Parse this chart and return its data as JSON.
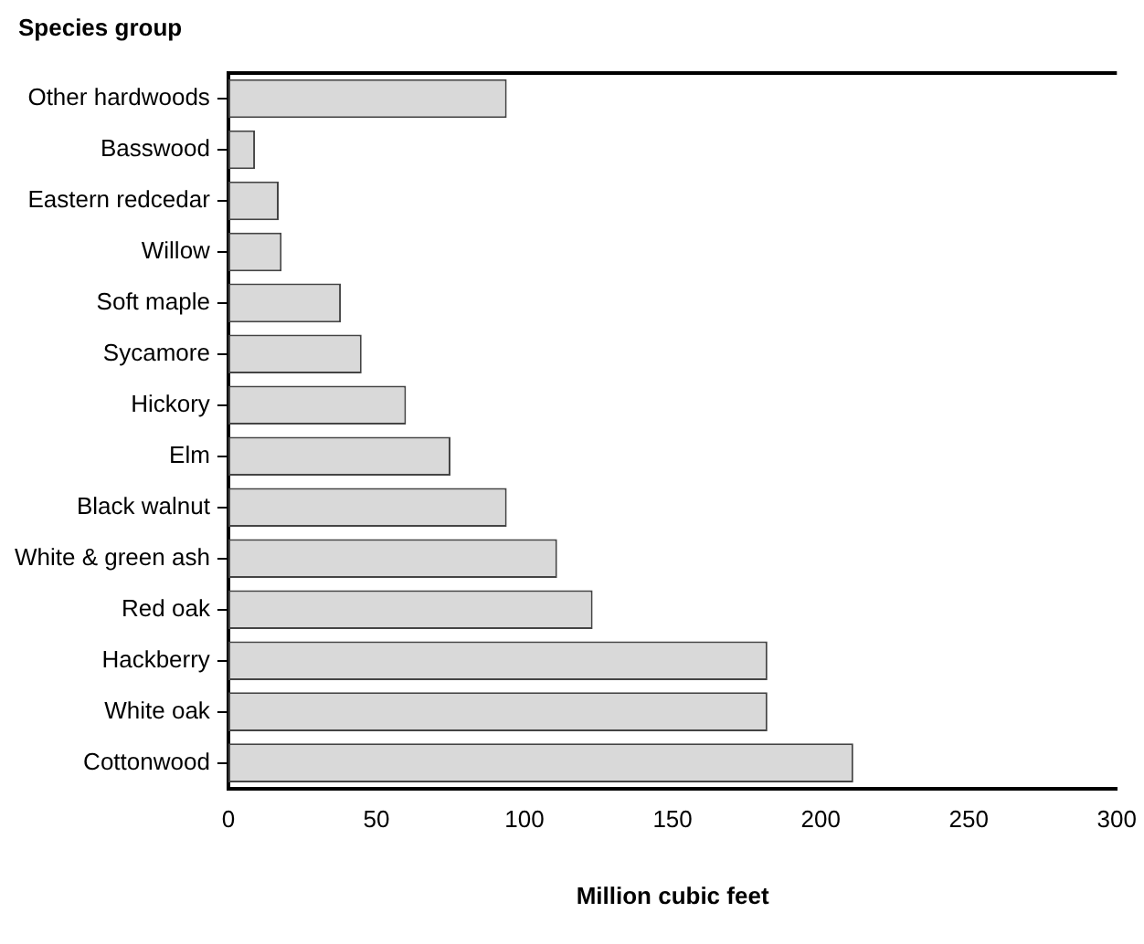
{
  "chart_data": {
    "type": "bar",
    "orientation": "horizontal",
    "ylabel": "Species group",
    "xlabel": "Million cubic feet",
    "categories": [
      "Other hardwoods",
      "Basswood",
      "Eastern redcedar",
      "Willow",
      "Soft maple",
      "Sycamore",
      "Hickory",
      "Elm",
      "Black walnut",
      "White & green ash",
      "Red oak",
      "Hackberry",
      "White oak",
      "Cottonwood"
    ],
    "values": [
      94,
      9,
      17,
      18,
      38,
      45,
      60,
      75,
      94,
      111,
      123,
      182,
      182,
      211
    ],
    "color": "#d9d9d9",
    "xlim": [
      0,
      300
    ],
    "xticks": [
      0,
      50,
      100,
      150,
      200,
      250,
      300
    ],
    "grid": false,
    "legend": false
  }
}
